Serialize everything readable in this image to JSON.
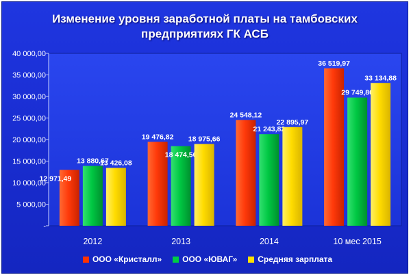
{
  "chart_data": {
    "type": "bar",
    "title": [
      "Изменение уровня заработной  платы на тамбовских",
      "предприятиях ГК АСБ"
    ],
    "categories": [
      "2012",
      "2013",
      "2014",
      "10 мес 2015"
    ],
    "series": [
      {
        "name": "ООО «Кристалл»",
        "color": "#ff3300",
        "values": [
          12971.49,
          19476.82,
          24548.12,
          36519.97
        ],
        "labels": [
          "12 971,49",
          "19 476,82",
          "24 548,12",
          "36 519,97"
        ]
      },
      {
        "name": "ООО «ЮВАГ»",
        "color": "#00cc44",
        "values": [
          13880.67,
          18474.5,
          21243.82,
          29749.8
        ],
        "labels": [
          "13 880,67",
          "18 474,50",
          "21 243,82",
          "29 749,80"
        ]
      },
      {
        "name": "Средняя зарплата",
        "color": "#ffe000",
        "values": [
          13426.08,
          18975.66,
          22895.97,
          33134.88
        ],
        "labels": [
          "13 426,08",
          "18 975,66",
          "22 895,97",
          "33 134,88"
        ]
      }
    ],
    "y_ticks": [
      "-",
      "5 000,00",
      "10 000,00",
      "15 000,00",
      "20 000,00",
      "25 000,00",
      "30 000,00",
      "35 000,00",
      "40 000,00"
    ],
    "ylim": [
      0,
      40000
    ],
    "grid": false,
    "legend_position": "bottom"
  }
}
